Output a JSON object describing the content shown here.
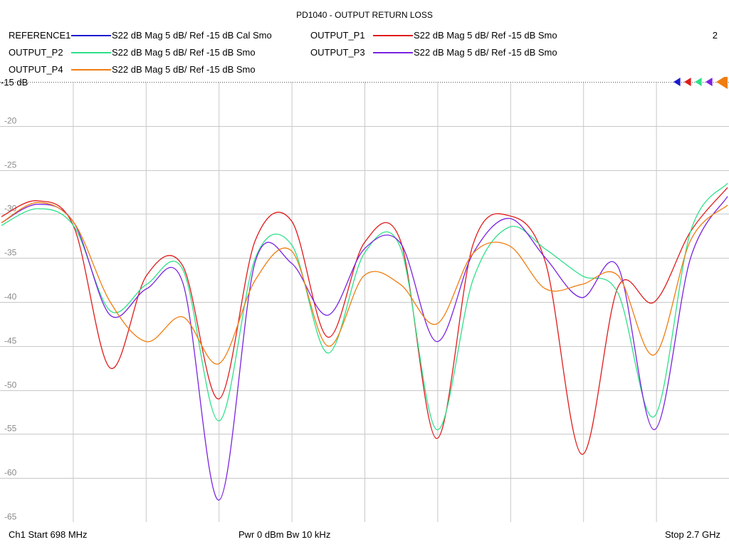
{
  "header": {
    "title": "PD1040 - OUTPUT RETURN LOSS",
    "page_number": "2"
  },
  "legend": [
    {
      "name": "REFERENCE1",
      "desc": "S22  dB Mag  5 dB/ Ref -15 dB  Cal Smo",
      "color": "#1a1ad0"
    },
    {
      "name": "OUTPUT_P1",
      "desc": "S22  dB Mag  5 dB/ Ref -15 dB  Smo",
      "color": "#e01b1b"
    },
    {
      "name": "OUTPUT_P2",
      "desc": "S22  dB Mag  5 dB/ Ref -15 dB  Smo",
      "color": "#2fe08a"
    },
    {
      "name": "OUTPUT_P3",
      "desc": "S22  dB Mag  5 dB/ Ref -15 dB  Smo",
      "color": "#7a22e0"
    },
    {
      "name": "OUTPUT_P4",
      "desc": "S22  dB Mag  5 dB/ Ref -15 dB  Smo",
      "color": "#f07d10"
    }
  ],
  "footer": {
    "start": "Ch1  Start  698 MHz",
    "power": "Pwr  0 dBm  Bw  10 kHz",
    "stop": "Stop  2.7 GHz"
  },
  "chart_data": {
    "type": "line",
    "title": "PD1040 - OUTPUT RETURN LOSS",
    "xlabel": "",
    "ylabel": "",
    "xlim": [
      698,
      2700
    ],
    "ylim": [
      -65,
      -15
    ],
    "x_unit": "MHz",
    "y_unit": "dB",
    "ref_label": "-15 dB",
    "y_ticks": [
      -20,
      -25,
      -30,
      -35,
      -40,
      -45,
      -50,
      -55,
      -60,
      -65
    ],
    "grid": true,
    "x": [
      698,
      798,
      898,
      998,
      1098,
      1198,
      1298,
      1398,
      1498,
      1598,
      1698,
      1798,
      1898,
      1998,
      2098,
      2198,
      2298,
      2398,
      2498,
      2598,
      2700
    ],
    "series": [
      {
        "name": "OUTPUT_P1",
        "values": [
          -30.3,
          -28.5,
          -31.5,
          -47.5,
          -37.0,
          -35.9,
          -51.0,
          -33.0,
          -30.8,
          -44.0,
          -33.3,
          -33.0,
          -55.5,
          -33.5,
          -30.2,
          -35.5,
          -57.3,
          -38.3,
          -40.0,
          -32.0,
          -27.0
        ]
      },
      {
        "name": "OUTPUT_P2",
        "values": [
          -31.3,
          -29.4,
          -31.4,
          -41.0,
          -38.0,
          -36.3,
          -53.5,
          -35.0,
          -33.5,
          -45.8,
          -34.5,
          -33.8,
          -54.5,
          -37.5,
          -31.5,
          -34.0,
          -37.0,
          -39.0,
          -53.0,
          -32.0,
          -26.5
        ]
      },
      {
        "name": "OUTPUT_P3",
        "values": [
          -31.0,
          -28.9,
          -31.0,
          -41.5,
          -38.5,
          -37.8,
          -62.5,
          -35.4,
          -35.6,
          -41.5,
          -34.0,
          -33.3,
          -44.5,
          -34.5,
          -30.5,
          -35.0,
          -39.5,
          -36.0,
          -54.5,
          -35.0,
          -28.0
        ]
      },
      {
        "name": "OUTPUT_P4",
        "values": [
          -31.0,
          -28.7,
          -31.0,
          -40.0,
          -44.5,
          -41.7,
          -47.0,
          -37.5,
          -34.2,
          -45.0,
          -37.0,
          -38.0,
          -42.5,
          -34.5,
          -33.6,
          -38.5,
          -38.0,
          -37.0,
          -46.0,
          -33.0,
          -29.0
        ]
      }
    ]
  }
}
